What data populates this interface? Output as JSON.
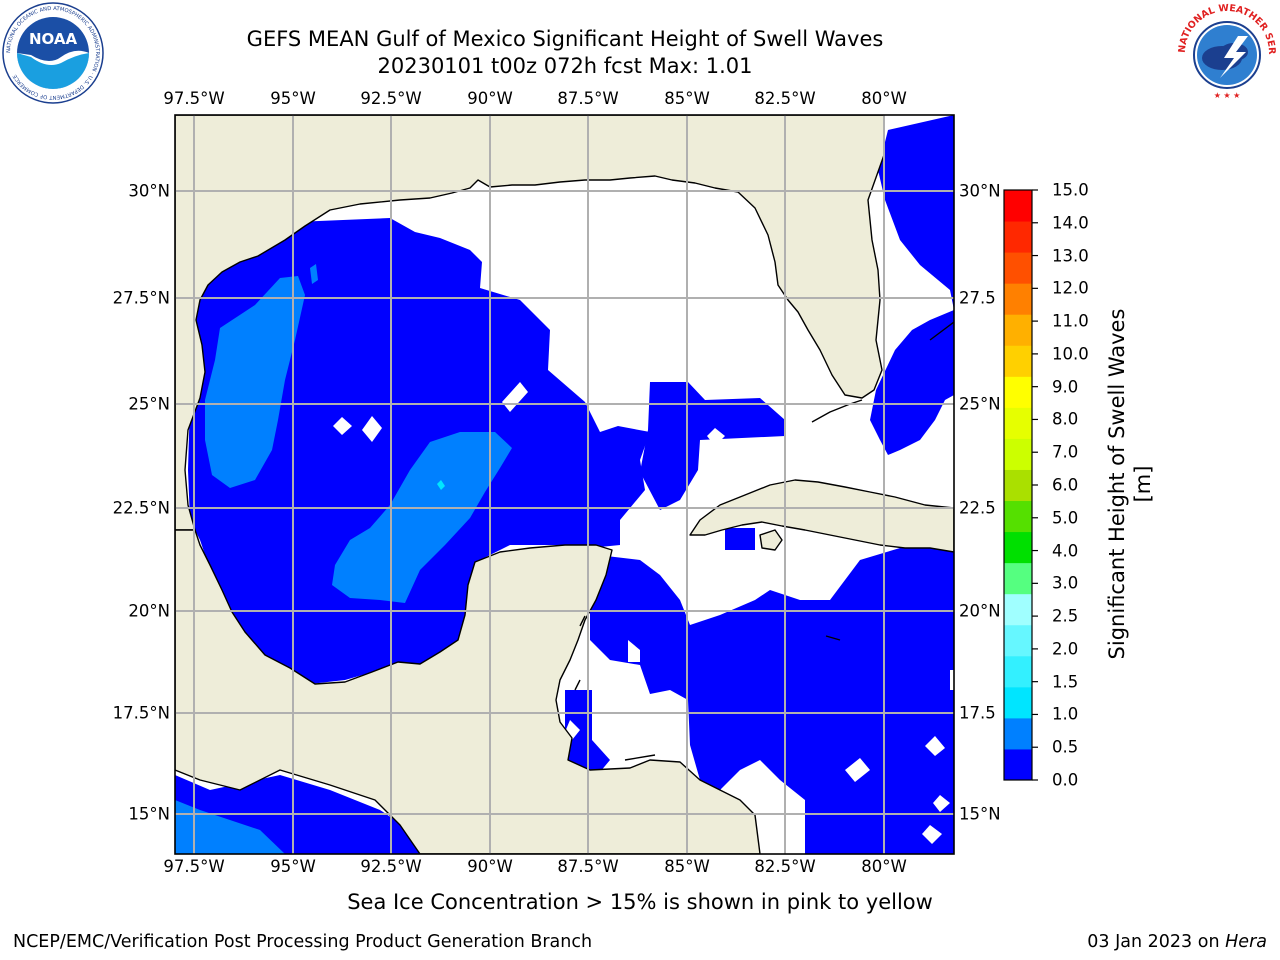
{
  "header": {
    "title": "GEFS MEAN Gulf of Mexico Significant Height of Swell Waves",
    "subtitle": "20230101 t00z 072h fcst   Max: 1.01"
  },
  "map": {
    "lon_labels": [
      "97.5°W",
      "95°W",
      "92.5°W",
      "90°W",
      "87.5°W",
      "85°W",
      "82.5°W",
      "80°W"
    ],
    "lat_labels": [
      "30°N",
      "27.5°N",
      "25°N",
      "22.5°N",
      "20°N",
      "17.5°N",
      "15°N"
    ],
    "lat_labels_right": [
      "30°N",
      "27.5",
      "25°N",
      "22.5",
      "20°N",
      "17.5",
      "15°N"
    ],
    "land_color": "#eeedd9",
    "grid_color": "#b0b0b0",
    "extent": {
      "lon": [
        -98,
        -78.2
      ],
      "lat": [
        14.0,
        31.6
      ]
    }
  },
  "colorbar": {
    "title": "Significant Height of Swell Waves [m]",
    "tick_labels": [
      "0.0",
      "0.5",
      "1.0",
      "1.5",
      "2.0",
      "2.5",
      "3.0",
      "4.0",
      "5.0",
      "6.0",
      "7.0",
      "8.0",
      "9.0",
      "10.0",
      "11.0",
      "12.0",
      "13.0",
      "14.0",
      "15.0"
    ],
    "colors": [
      "#0000ff",
      "#0080ff",
      "#00e5ff",
      "#33f0ff",
      "#66f7ff",
      "#a0ffff",
      "#55ff80",
      "#00e000",
      "#55e000",
      "#aae000",
      "#ccff00",
      "#e6ff00",
      "#ffff00",
      "#ffd000",
      "#ffb000",
      "#ff8000",
      "#ff5000",
      "#ff2800",
      "#ff0000"
    ]
  },
  "legend_note": "Sea Ice Concentration > 15% is shown in pink to yellow",
  "footer": {
    "left": "NCEP/EMC/Verification Post Processing Product Generation Branch",
    "right_date": "03 Jan 2023 on",
    "right_host": "Hera"
  },
  "logos": {
    "noaa": "NOAA",
    "noaa_ring": "NATIONAL OCEANIC AND ATMOSPHERIC ADMINISTRATION · U.S. DEPARTMENT OF COMMERCE",
    "nws_ring": "NATIONAL WEATHER SERVICE"
  },
  "field_levels": {
    "open_water_m": 0.0,
    "blue_band_m": [
      0.0,
      0.5
    ],
    "light_band_m": [
      0.5,
      1.0
    ],
    "max_m": 1.01
  }
}
